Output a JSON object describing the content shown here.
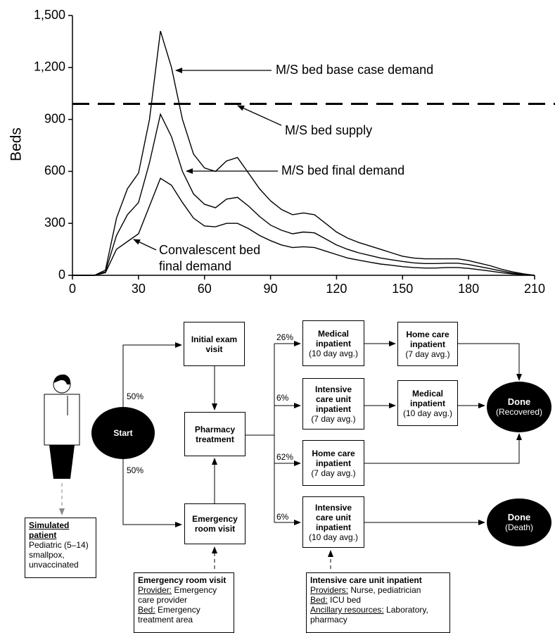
{
  "chart_data": {
    "type": "line",
    "y_label": "Beds",
    "xlim": [
      0,
      210
    ],
    "xticks": [
      0,
      30,
      60,
      90,
      120,
      150,
      180,
      210
    ],
    "ylim": [
      0,
      1500
    ],
    "yticks": [
      0,
      300,
      600,
      900,
      {
        "value": 1200,
        "label": "1,200"
      },
      {
        "value": 1500,
        "label": "1,500"
      }
    ],
    "x": [
      0,
      5,
      10,
      15,
      20,
      25,
      30,
      35,
      40,
      45,
      50,
      55,
      60,
      65,
      70,
      75,
      80,
      85,
      90,
      95,
      100,
      105,
      110,
      115,
      120,
      125,
      130,
      135,
      140,
      145,
      150,
      155,
      160,
      165,
      170,
      175,
      180,
      185,
      190,
      195,
      200,
      205,
      210
    ],
    "series": [
      {
        "name": "M/S bed base case demand",
        "color": "#000000",
        "values": [
          0,
          0,
          0,
          30,
          330,
          500,
          590,
          900,
          1410,
          1200,
          900,
          700,
          620,
          600,
          660,
          680,
          590,
          500,
          430,
          380,
          350,
          360,
          350,
          300,
          250,
          215,
          190,
          170,
          150,
          130,
          110,
          100,
          95,
          95,
          95,
          95,
          85,
          70,
          55,
          35,
          20,
          8,
          0
        ]
      },
      {
        "name": "M/S bed final demand",
        "color": "#000000",
        "values": [
          0,
          0,
          0,
          20,
          230,
          350,
          420,
          650,
          930,
          800,
          600,
          470,
          410,
          390,
          440,
          450,
          400,
          340,
          290,
          260,
          240,
          250,
          245,
          210,
          175,
          150,
          130,
          115,
          100,
          90,
          80,
          72,
          68,
          68,
          70,
          70,
          62,
          50,
          38,
          25,
          13,
          5,
          0
        ]
      },
      {
        "name": "Convalescent bed final demand",
        "color": "#000000",
        "values": [
          0,
          0,
          0,
          15,
          150,
          195,
          240,
          400,
          560,
          520,
          420,
          330,
          285,
          280,
          300,
          300,
          270,
          230,
          200,
          175,
          160,
          165,
          160,
          140,
          120,
          100,
          88,
          76,
          65,
          58,
          50,
          45,
          42,
          42,
          45,
          45,
          40,
          32,
          24,
          15,
          8,
          3,
          0
        ]
      }
    ],
    "hlines": [
      {
        "name": "M/S bed supply",
        "value": 990,
        "color": "#000000",
        "dash": true
      }
    ]
  },
  "diagram": {
    "start": "Start",
    "patient": {
      "title": "Simulated patient",
      "text": "Pediatric (5–14) smallpox, unvaccinated"
    },
    "branches": [
      "50%",
      "50%",
      "26%",
      "6%",
      "62%",
      "6%"
    ],
    "nodes": [
      {
        "label": "Initial exam visit"
      },
      {
        "label": "Pharmacy treatment"
      },
      {
        "label": "Emergency room visit"
      },
      {
        "label": "Medical inpatient",
        "detail": "(10 day avg.)"
      },
      {
        "label": "Intensive care unit inpatient",
        "detail": "(7 day avg.)"
      },
      {
        "label": "Home care inpatient",
        "detail": "(7 day avg.)"
      },
      {
        "label": "Intensive care unit inpatient",
        "detail": "(10 day avg.)"
      },
      {
        "label": "Home care inpatient",
        "detail": "(7 day avg.)"
      },
      {
        "label": "Medical inpatient",
        "detail": "(10 day avg.)"
      }
    ],
    "ends": [
      {
        "label": "Done",
        "detail": "(Recovered)"
      },
      {
        "label": "Done",
        "detail": "(Death)"
      }
    ],
    "resources": [
      {
        "title": "Emergency room visit",
        "items": [
          {
            "key": "Provider:",
            "value": "Emergency care provider"
          },
          {
            "key": "Bed:",
            "value": "Emergency treatment area"
          }
        ]
      },
      {
        "title": "Intensive care unit inpatient",
        "items": [
          {
            "key": "Providers:",
            "value": "Nurse, pediatrician"
          },
          {
            "key": "Bed:",
            "value": "ICU bed"
          },
          {
            "key": "Ancillary resources:",
            "value": "Laboratory, pharmacy"
          }
        ]
      }
    ]
  }
}
